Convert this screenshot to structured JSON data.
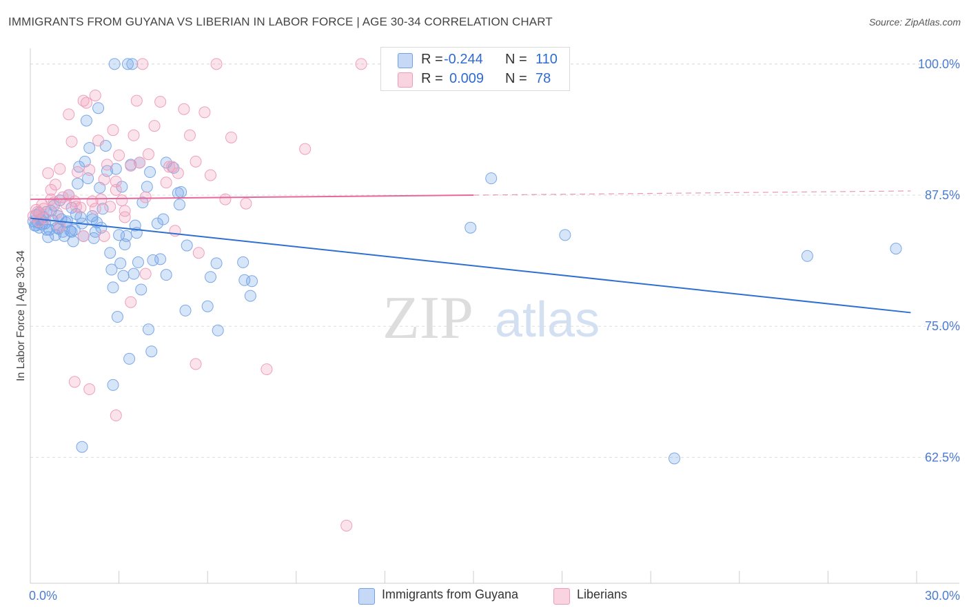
{
  "title": "IMMIGRANTS FROM GUYANA VS LIBERIAN IN LABOR FORCE | AGE 30-34 CORRELATION CHART",
  "source": "Source: ZipAtlas.com",
  "watermark": {
    "zip": "ZIP",
    "atlas": "atlas"
  },
  "legend": {
    "series1": {
      "r_label": "R =",
      "r_value": "-0.244",
      "n_label": "N =",
      "n_value": "110",
      "color": "#6fa0e8"
    },
    "series2": {
      "r_label": "R =",
      "r_value": "0.009",
      "n_label": "N =",
      "n_value": "78",
      "color": "#f09ab8"
    }
  },
  "bottom_legend": {
    "series1": "Immigrants from Guyana",
    "series2": "Liberians"
  },
  "chart_data": {
    "type": "scatter",
    "title": "IMMIGRANTS FROM GUYANA VS LIBERIAN IN LABOR FORCE | AGE 30-34 CORRELATION CHART",
    "xlabel": "",
    "ylabel": "In Labor Force | Age 30-34",
    "xlim": [
      0,
      30
    ],
    "ylim": [
      50.5,
      101.5
    ],
    "x_tick_labels": [
      "0.0%",
      "30.0%"
    ],
    "y_ticks": [
      62.5,
      75.0,
      87.5,
      100.0
    ],
    "y_tick_labels": [
      "62.5%",
      "75.0%",
      "87.5%",
      "100.0%"
    ],
    "grid": true,
    "series": [
      {
        "name": "Immigrants from Guyana",
        "color": "#6fa0e8",
        "line_color": "#2e6fd0",
        "trend": {
          "x": [
            0,
            29.8
          ],
          "y": [
            85.3,
            76.3
          ]
        },
        "points": [
          [
            0.1,
            85.0
          ],
          [
            0.15,
            84.6
          ],
          [
            0.2,
            85.6
          ],
          [
            0.25,
            84.9
          ],
          [
            0.3,
            85.8
          ],
          [
            0.35,
            85.2
          ],
          [
            0.4,
            84.7
          ],
          [
            0.45,
            85.4
          ],
          [
            0.5,
            84.8
          ],
          [
            0.55,
            85.9
          ],
          [
            0.6,
            83.5
          ],
          [
            0.65,
            84.2
          ],
          [
            0.7,
            86.0
          ],
          [
            0.75,
            85.1
          ],
          [
            0.8,
            86.5
          ],
          [
            0.85,
            83.7
          ],
          [
            0.9,
            84.4
          ],
          [
            0.95,
            85.5
          ],
          [
            1.0,
            87.0
          ],
          [
            1.05,
            85.2
          ],
          [
            1.1,
            84.0
          ],
          [
            1.15,
            83.6
          ],
          [
            1.2,
            84.9
          ],
          [
            1.25,
            85.0
          ],
          [
            1.3,
            87.5
          ],
          [
            1.35,
            84.1
          ],
          [
            1.4,
            86.3
          ],
          [
            1.45,
            83.1
          ],
          [
            1.5,
            84.2
          ],
          [
            1.55,
            85.7
          ],
          [
            1.6,
            88.6
          ],
          [
            1.65,
            90.2
          ],
          [
            1.7,
            85.4
          ],
          [
            1.75,
            84.8
          ],
          [
            1.8,
            83.6
          ],
          [
            1.85,
            90.7
          ],
          [
            1.9,
            94.6
          ],
          [
            1.95,
            89.1
          ],
          [
            2.0,
            92.0
          ],
          [
            2.1,
            85.5
          ],
          [
            2.15,
            83.4
          ],
          [
            2.2,
            84.0
          ],
          [
            2.25,
            84.9
          ],
          [
            2.3,
            95.8
          ],
          [
            2.35,
            88.2
          ],
          [
            2.4,
            84.4
          ],
          [
            2.45,
            86.2
          ],
          [
            2.55,
            92.2
          ],
          [
            2.6,
            89.8
          ],
          [
            2.7,
            82.0
          ],
          [
            2.75,
            80.4
          ],
          [
            2.8,
            78.7
          ],
          [
            2.85,
            100.0
          ],
          [
            2.9,
            90.0
          ],
          [
            2.95,
            75.9
          ],
          [
            3.0,
            83.7
          ],
          [
            3.05,
            81.0
          ],
          [
            3.1,
            88.3
          ],
          [
            3.15,
            79.8
          ],
          [
            3.2,
            82.8
          ],
          [
            3.25,
            83.6
          ],
          [
            3.3,
            100.0
          ],
          [
            3.35,
            71.9
          ],
          [
            3.4,
            90.4
          ],
          [
            3.45,
            100.0
          ],
          [
            3.5,
            80.0
          ],
          [
            3.55,
            84.6
          ],
          [
            3.6,
            83.9
          ],
          [
            3.65,
            81.1
          ],
          [
            3.7,
            90.6
          ],
          [
            3.75,
            78.5
          ],
          [
            3.8,
            86.8
          ],
          [
            3.95,
            88.3
          ],
          [
            4.0,
            74.7
          ],
          [
            4.05,
            89.7
          ],
          [
            4.1,
            72.6
          ],
          [
            4.15,
            81.3
          ],
          [
            4.3,
            84.8
          ],
          [
            4.4,
            81.4
          ],
          [
            4.5,
            85.2
          ],
          [
            4.6,
            79.9
          ],
          [
            4.6,
            90.6
          ],
          [
            4.85,
            90.1
          ],
          [
            5.0,
            87.7
          ],
          [
            5.05,
            86.6
          ],
          [
            5.1,
            87.8
          ],
          [
            5.25,
            76.5
          ],
          [
            5.3,
            82.7
          ],
          [
            6.0,
            76.9
          ],
          [
            6.1,
            79.7
          ],
          [
            6.3,
            81.0
          ],
          [
            6.35,
            74.6
          ],
          [
            7.2,
            81.1
          ],
          [
            7.25,
            79.4
          ],
          [
            7.45,
            77.9
          ],
          [
            7.5,
            79.3
          ],
          [
            1.75,
            63.5
          ],
          [
            2.8,
            69.4
          ],
          [
            15.6,
            89.1
          ],
          [
            14.9,
            84.4
          ],
          [
            18.1,
            83.7
          ],
          [
            21.8,
            62.4
          ],
          [
            26.3,
            81.7
          ],
          [
            29.3,
            82.4
          ],
          [
            0.55,
            84.2
          ],
          [
            1.4,
            84.0
          ],
          [
            0.95,
            84.3
          ],
          [
            0.2,
            84.6
          ],
          [
            2.1,
            85.2
          ],
          [
            0.3,
            84.4
          ]
        ]
      },
      {
        "name": "Liberians",
        "color": "#f09ab8",
        "line_color": "#e8679a",
        "trend": {
          "x": [
            0,
            15.0
          ],
          "y": [
            87.1,
            87.5
          ]
        },
        "trend_dashed": {
          "x": [
            15.0,
            29.8
          ],
          "y": [
            87.5,
            87.9
          ]
        },
        "points": [
          [
            0.1,
            85.5
          ],
          [
            0.2,
            86.1
          ],
          [
            0.3,
            85.0
          ],
          [
            0.4,
            86.6
          ],
          [
            0.5,
            85.3
          ],
          [
            0.6,
            89.6
          ],
          [
            0.7,
            88.0
          ],
          [
            0.8,
            86.8
          ],
          [
            0.9,
            85.8
          ],
          [
            1.0,
            90.0
          ],
          [
            1.1,
            87.3
          ],
          [
            1.2,
            86.7
          ],
          [
            1.3,
            95.2
          ],
          [
            1.4,
            92.6
          ],
          [
            1.5,
            86.9
          ],
          [
            1.6,
            89.7
          ],
          [
            1.7,
            86.3
          ],
          [
            1.8,
            96.5
          ],
          [
            1.9,
            96.3
          ],
          [
            2.0,
            89.9
          ],
          [
            2.1,
            86.9
          ],
          [
            2.2,
            97.0
          ],
          [
            2.3,
            92.7
          ],
          [
            2.4,
            87.1
          ],
          [
            2.5,
            89.0
          ],
          [
            2.6,
            90.4
          ],
          [
            2.7,
            86.4
          ],
          [
            2.8,
            93.7
          ],
          [
            2.9,
            88.8
          ],
          [
            3.0,
            91.3
          ],
          [
            3.2,
            86.0
          ],
          [
            3.4,
            90.3
          ],
          [
            3.5,
            93.2
          ],
          [
            3.6,
            96.5
          ],
          [
            3.7,
            90.6
          ],
          [
            3.8,
            100.0
          ],
          [
            3.9,
            87.3
          ],
          [
            4.0,
            91.4
          ],
          [
            4.2,
            94.1
          ],
          [
            4.4,
            96.4
          ],
          [
            4.6,
            88.7
          ],
          [
            4.8,
            90.2
          ],
          [
            5.0,
            89.6
          ],
          [
            5.2,
            95.7
          ],
          [
            5.4,
            93.2
          ],
          [
            5.6,
            90.7
          ],
          [
            5.9,
            95.4
          ],
          [
            6.3,
            100.0
          ],
          [
            6.6,
            87.1
          ],
          [
            6.8,
            93.0
          ],
          [
            7.3,
            86.7
          ],
          [
            9.3,
            91.9
          ],
          [
            11.2,
            100.0
          ],
          [
            1.5,
            69.7
          ],
          [
            2.0,
            69.0
          ],
          [
            2.9,
            66.5
          ],
          [
            3.4,
            77.3
          ],
          [
            3.9,
            80.0
          ],
          [
            5.6,
            71.4
          ],
          [
            5.7,
            82.0
          ],
          [
            8.0,
            70.9
          ],
          [
            10.7,
            56.0
          ],
          [
            3.2,
            85.4
          ],
          [
            2.5,
            83.6
          ],
          [
            1.8,
            83.6
          ],
          [
            4.9,
            84.1
          ],
          [
            2.9,
            88.0
          ],
          [
            1.3,
            87.5
          ],
          [
            0.7,
            87.1
          ],
          [
            0.45,
            86.2
          ],
          [
            1.0,
            84.5
          ],
          [
            0.25,
            85.9
          ],
          [
            2.2,
            86.2
          ],
          [
            1.55,
            86.4
          ],
          [
            3.1,
            87.0
          ],
          [
            0.85,
            88.5
          ],
          [
            6.1,
            89.4
          ],
          [
            4.7,
            90.2
          ]
        ]
      }
    ]
  }
}
